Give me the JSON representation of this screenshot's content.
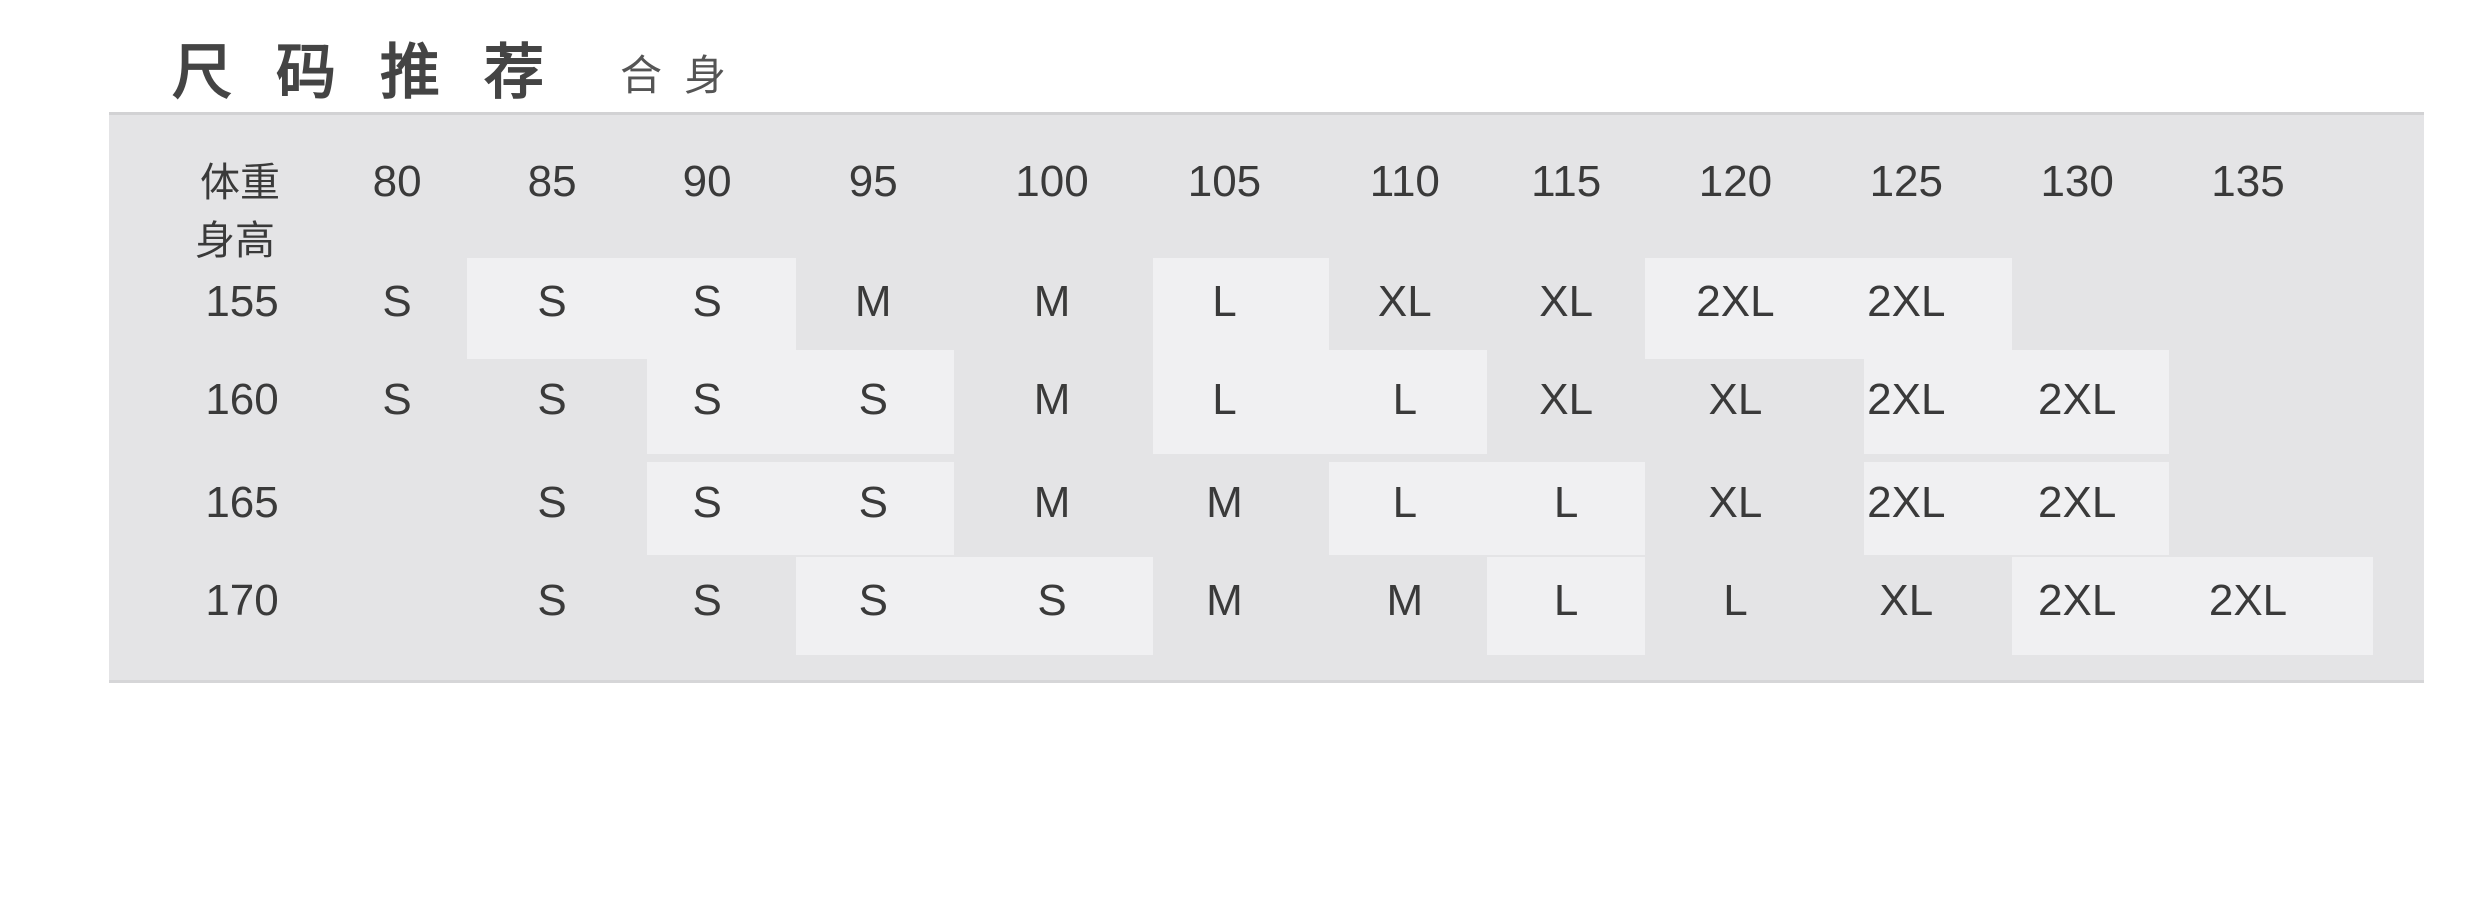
{
  "header": {
    "title": "尺码推荐",
    "subtitle": "合身"
  },
  "table": {
    "corner_top": "体重",
    "corner_bottom": "身高",
    "weights": [
      "80",
      "85",
      "90",
      "95",
      "100",
      "105",
      "110",
      "115",
      "120",
      "125",
      "130",
      "135"
    ],
    "rows": [
      {
        "height": "155",
        "sizes": [
          "S",
          "S",
          "S",
          "M",
          "M",
          "L",
          "XL",
          "XL",
          "2XL",
          "2XL",
          "",
          ""
        ],
        "highlighted_columns": [
          1,
          2,
          5,
          8,
          9
        ]
      },
      {
        "height": "160",
        "sizes": [
          "S",
          "S",
          "S",
          "S",
          "M",
          "L",
          "L",
          "XL",
          "XL",
          "2XL",
          "2XL",
          ""
        ],
        "highlighted_columns": [
          2,
          3,
          5,
          6,
          9,
          10
        ]
      },
      {
        "height": "165",
        "sizes": [
          "",
          "S",
          "S",
          "S",
          "M",
          "M",
          "L",
          "L",
          "XL",
          "2XL",
          "2XL",
          ""
        ],
        "highlighted_columns": [
          2,
          3,
          6,
          7,
          9,
          10
        ]
      },
      {
        "height": "170",
        "sizes": [
          "",
          "S",
          "S",
          "S",
          "S",
          "M",
          "M",
          "L",
          "L",
          "XL",
          "2XL",
          "2XL"
        ],
        "highlighted_columns": [
          3,
          4,
          7,
          10,
          11
        ]
      }
    ]
  },
  "colors": {
    "panel": "#e4e4e6",
    "highlight": "#f0f0f2",
    "text": "#3a3a3a"
  }
}
